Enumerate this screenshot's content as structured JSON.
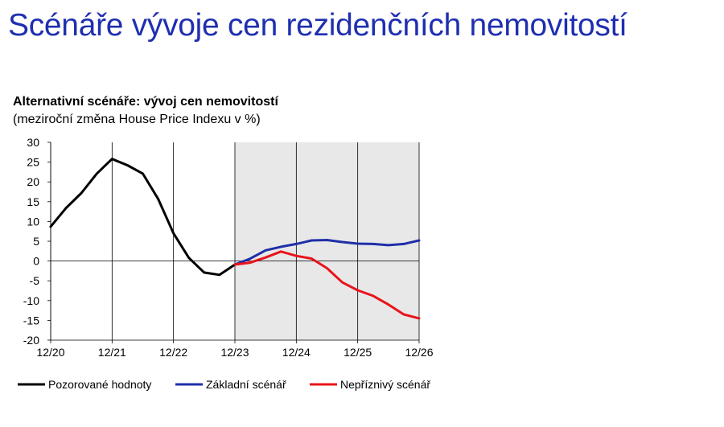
{
  "page": {
    "title": "Scénáře vývoje cen rezidenčních nemovitostí"
  },
  "chart_data": {
    "type": "line",
    "title": "Alternativní scénáře: vývoj cen nemovitostí",
    "subtitle": "(meziroční změna House Price Indexu v %)",
    "xlabel": "",
    "ylabel": "",
    "ylim": [
      -20,
      30
    ],
    "yticks": [
      30,
      25,
      20,
      15,
      10,
      5,
      0,
      -5,
      -10,
      -15,
      -20
    ],
    "x_range": [
      0,
      24
    ],
    "xtick_labels": [
      "12/20",
      "12/21",
      "12/22",
      "12/23",
      "12/24",
      "12/25",
      "12/26"
    ],
    "xtick_positions": [
      0,
      4,
      8,
      12,
      16,
      20,
      24
    ],
    "grid": false,
    "shaded_region": [
      12,
      24
    ],
    "legend_placement": "bottom",
    "series": [
      {
        "name": "Pozorované hodnoty",
        "color": "#000000",
        "x": [
          0,
          1,
          2,
          3,
          4,
          5,
          6,
          7,
          8,
          9,
          10,
          11,
          12
        ],
        "values": [
          8.7,
          13.4,
          17.2,
          22.1,
          25.8,
          24.2,
          22.1,
          15.7,
          7.0,
          0.8,
          -2.9,
          -3.5,
          -0.9
        ]
      },
      {
        "name": "Základní scénář",
        "color": "#1f2fa8",
        "x": [
          12,
          13,
          14,
          15,
          16,
          17,
          18,
          19,
          20,
          21,
          22,
          23,
          24
        ],
        "values": [
          -0.9,
          0.6,
          2.7,
          3.6,
          4.3,
          5.2,
          5.3,
          4.8,
          4.4,
          4.3,
          4.0,
          4.3,
          5.2
        ]
      },
      {
        "name": "Nepříznivý scénář",
        "color": "#e8141c",
        "x": [
          12,
          13,
          14,
          15,
          16,
          17,
          18,
          19,
          20,
          21,
          22,
          23,
          24
        ],
        "values": [
          -0.9,
          -0.4,
          0.9,
          2.4,
          1.3,
          0.6,
          -1.8,
          -5.4,
          -7.4,
          -8.8,
          -11.0,
          -13.5,
          -14.5
        ]
      }
    ]
  }
}
